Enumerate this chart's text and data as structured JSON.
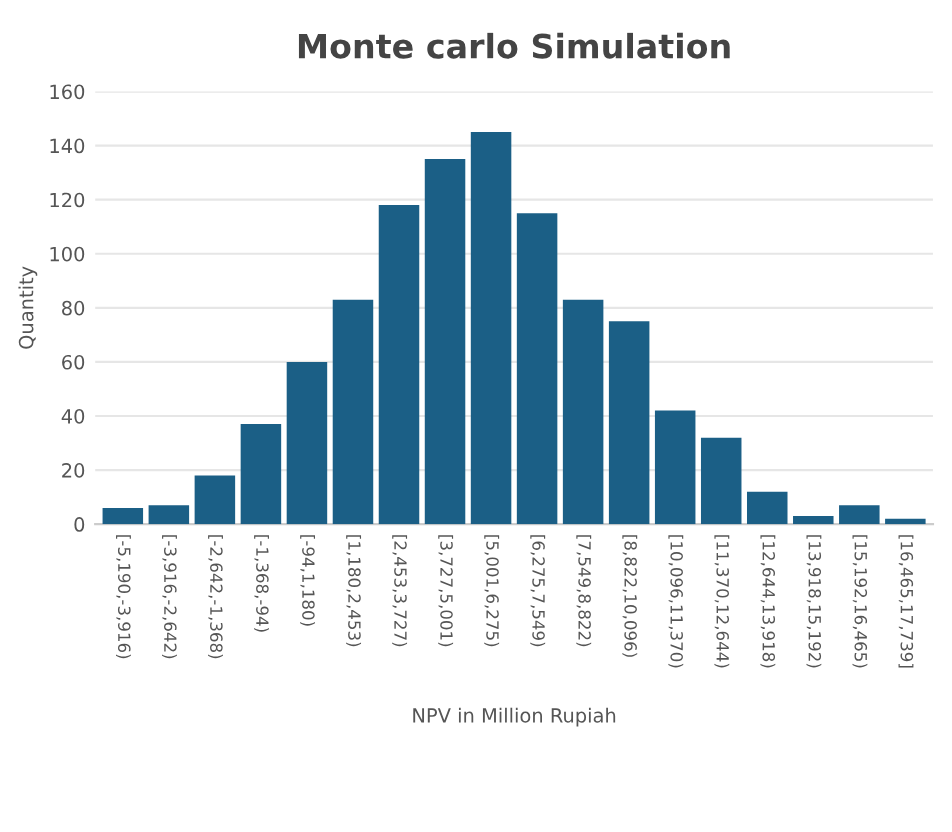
{
  "chart_data": {
    "type": "bar",
    "title": "Monte carlo Simulation",
    "xlabel": "NPV in Million Rupiah",
    "ylabel": "Quantity",
    "categories": [
      "[-5,190,-3,916)",
      "[-3,916,-2,642)",
      "[-2,642,-1,368)",
      "[-1,368,-94)",
      "[-94,1,180)",
      "[1,180,2,453)",
      "[2,453,3,727)",
      "[3,727,5,001)",
      "[5,001,6,275)",
      "[6,275,7,549)",
      "[7,549,8,822)",
      "[8,822,10,096)",
      "[10,096,11,370)",
      "[11,370,12,644)",
      "[12,644,13,918)",
      "[13,918,15,192)",
      "[15,192,16,465)",
      "[16,465,17,739]"
    ],
    "values": [
      6,
      7,
      18,
      37,
      60,
      83,
      118,
      135,
      145,
      115,
      83,
      75,
      42,
      32,
      12,
      3,
      7,
      2
    ],
    "color": "#1b5f86",
    "ylim": [
      0,
      160
    ],
    "yticks": [
      0,
      20,
      40,
      60,
      80,
      100,
      120,
      140,
      160
    ],
    "grid": "y"
  }
}
